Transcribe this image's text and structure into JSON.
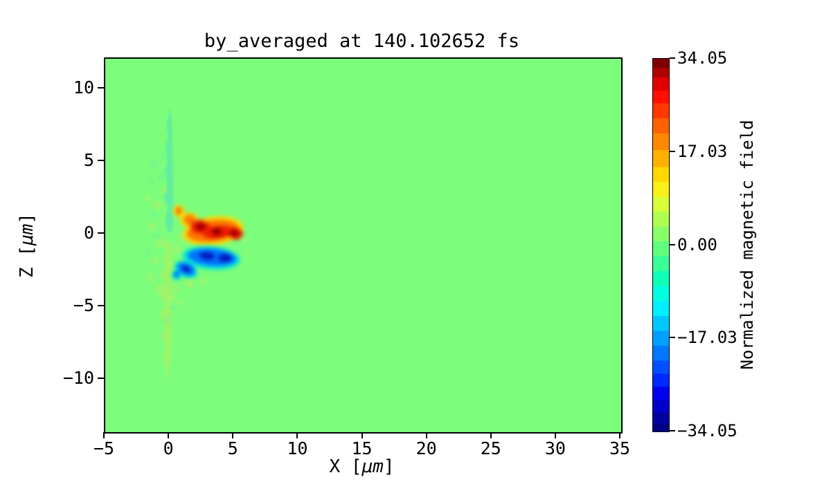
{
  "chart_data": {
    "type": "heatmap",
    "title": "by_averaged at 140.102652 fs",
    "xlabel": {
      "pre": "X [",
      "unit": "μm",
      "post": "]"
    },
    "ylabel": {
      "pre": "Z [",
      "unit": "μm",
      "post": "]"
    },
    "xlim": [
      -5,
      35
    ],
    "zlim": [
      -13.6,
      12.1
    ],
    "x_ticks": [
      {
        "v": -5,
        "label": "−5"
      },
      {
        "v": 0,
        "label": "0"
      },
      {
        "v": 5,
        "label": "5"
      },
      {
        "v": 10,
        "label": "10"
      },
      {
        "v": 15,
        "label": "15"
      },
      {
        "v": 20,
        "label": "20"
      },
      {
        "v": 25,
        "label": "25"
      },
      {
        "v": 30,
        "label": "30"
      },
      {
        "v": 35,
        "label": "35"
      }
    ],
    "z_ticks": [
      {
        "v": 10,
        "label": "10"
      },
      {
        "v": 5,
        "label": "5"
      },
      {
        "v": 0,
        "label": "0"
      },
      {
        "v": -5,
        "label": "−5"
      },
      {
        "v": -10,
        "label": "−10"
      }
    ],
    "colormap": "jet",
    "zero_value_color": "#7cfd7b",
    "colorbar": {
      "label": "Normalized magnetic field",
      "vmin": -34.05,
      "vmax": 34.05,
      "ticks": [
        {
          "v": 34.05,
          "label": "34.05"
        },
        {
          "v": 17.03,
          "label": "17.03"
        },
        {
          "v": 0.0,
          "label": "0.00"
        },
        {
          "v": -17.03,
          "label": "−17.03"
        },
        {
          "v": -34.05,
          "label": "−34.05"
        }
      ]
    },
    "features": [
      {
        "name": "positive-field-lobe",
        "sign": "+",
        "x_um": [
          0.4,
          5.6
        ],
        "z_um": [
          0.1,
          2.6
        ],
        "peak": 34.05,
        "colors": [
          "#ffd800",
          "#ff7800",
          "#ee1a00",
          "#a50000"
        ]
      },
      {
        "name": "negative-field-lobe",
        "sign": "-",
        "x_um": [
          0.2,
          5.6
        ],
        "z_um": [
          -2.5,
          -0.2
        ],
        "peak": -34.05,
        "colors": [
          "#00e6d8",
          "#0077ff",
          "#001ac8"
        ]
      },
      {
        "name": "weak-wake-column-upper",
        "x_um": [
          -0.6,
          0.4
        ],
        "z_um": [
          0.5,
          8.8
        ],
        "value": "slightly negative (teal)"
      },
      {
        "name": "weak-wake-column-lower",
        "x_um": [
          -0.7,
          0.3
        ],
        "z_um": [
          -9.0,
          -0.3
        ],
        "value": "slightly positive (yellow-green)"
      }
    ]
  }
}
